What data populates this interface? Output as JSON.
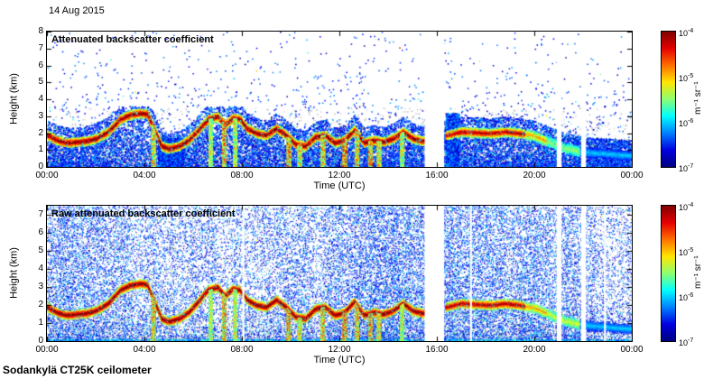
{
  "header": {
    "date": "14 Aug 2015"
  },
  "footer": {
    "instrument": "Sodankylä CT25K ceilometer"
  },
  "colorbar": {
    "unit": "m⁻¹ sr⁻¹",
    "tick_base": "10",
    "tick_exponents": [
      "-4",
      "-5",
      "-6",
      "-7"
    ],
    "colors_top_to_bottom": [
      "#7f0000",
      "#e50000",
      "#ff7000",
      "#ffe600",
      "#8cff70",
      "#00ffff",
      "#0080ff",
      "#0000e0",
      "#000080"
    ]
  },
  "chart_data": {
    "type": "heatmap",
    "colormap": "jet",
    "color_scale": {
      "type": "log",
      "min": 1e-07,
      "max": 0.0001,
      "unit": "m⁻¹ sr⁻¹"
    },
    "x_axis": {
      "label": "Time (UTC)",
      "range_hours": [
        0,
        24
      ],
      "ticks": [
        "00:00",
        "04:00",
        "08:00",
        "12:00",
        "16:00",
        "20:00",
        "00:00"
      ]
    },
    "panels": [
      {
        "id": "attenuated",
        "title": "Attenuated backscatter coefficient",
        "ylabel": "Height (km)",
        "y_ticks": [
          0,
          1,
          2,
          3,
          4,
          5,
          6,
          7,
          8
        ],
        "y_max_km": 8,
        "noise": "processed",
        "aerosol_layer_km": [
          [
            0,
            1.9
          ],
          [
            0.4,
            1.6
          ],
          [
            0.8,
            1.45
          ],
          [
            1.2,
            1.5
          ],
          [
            1.6,
            1.55
          ],
          [
            2,
            1.7
          ],
          [
            2.5,
            2.1
          ],
          [
            3,
            2.85
          ],
          [
            3.4,
            3.1
          ],
          [
            3.8,
            3.2
          ],
          [
            4.1,
            3.15
          ],
          [
            4.4,
            2.2
          ],
          [
            4.7,
            1.25
          ],
          [
            5,
            1.1
          ],
          [
            5.4,
            1.25
          ],
          [
            5.8,
            1.6
          ],
          [
            6.2,
            2.2
          ],
          [
            6.6,
            2.85
          ],
          [
            7,
            3.0
          ],
          [
            7.3,
            2.5
          ],
          [
            7.6,
            2.9
          ],
          [
            7.9,
            2.85
          ],
          [
            8.2,
            2.3
          ],
          [
            8.6,
            2.0
          ],
          [
            9,
            1.9
          ],
          [
            9.4,
            2.3
          ],
          [
            9.8,
            1.9
          ],
          [
            10.2,
            1.35
          ],
          [
            10.6,
            1.25
          ],
          [
            11,
            1.8
          ],
          [
            11.4,
            1.9
          ],
          [
            11.8,
            1.45
          ],
          [
            12.2,
            1.6
          ],
          [
            12.6,
            2.2
          ],
          [
            13,
            1.45
          ],
          [
            13.4,
            1.6
          ],
          [
            13.8,
            1.5
          ],
          [
            14.2,
            1.7
          ],
          [
            14.6,
            2.1
          ],
          [
            15,
            1.7
          ],
          [
            15.4,
            1.55
          ],
          [
            16.4,
            1.9
          ],
          [
            17,
            2.1
          ],
          [
            17.6,
            2.05
          ],
          [
            18.2,
            2.0
          ],
          [
            18.8,
            2.1
          ],
          [
            19.4,
            2.0
          ],
          [
            20,
            1.85
          ],
          [
            20.6,
            1.5
          ],
          [
            21.2,
            1.15
          ],
          [
            21.8,
            0.95
          ],
          [
            22.4,
            0.85
          ],
          [
            23,
            0.8
          ],
          [
            23.6,
            0.72
          ],
          [
            24,
            0.7
          ]
        ],
        "layer_segments": [
          {
            "from": 0,
            "to": 15.5,
            "strength": 1
          },
          {
            "from": 16.35,
            "to": 19.6,
            "strength": 0.9
          },
          {
            "from": 19.6,
            "to": 20.5,
            "strength": 0.55
          },
          {
            "from": 20.5,
            "to": 21.85,
            "strength": 0.25
          },
          {
            "from": 21.85,
            "to": 24,
            "strength": 0.8,
            "dark": true
          }
        ],
        "precip_hours": [
          [
            4.35,
            0.75
          ],
          [
            6.7,
            0.55
          ],
          [
            7.25,
            0.85
          ],
          [
            7.7,
            0.6
          ],
          [
            9.9,
            0.9
          ],
          [
            10.35,
            0.7
          ],
          [
            11.3,
            0.8
          ],
          [
            12.2,
            0.95
          ],
          [
            12.7,
            0.8
          ],
          [
            13.25,
            0.9
          ],
          [
            13.6,
            0.7
          ],
          [
            14.55,
            0.6
          ]
        ],
        "gap_hours": [
          [
            15.5,
            16.3
          ],
          [
            20.92,
            21.12
          ],
          [
            21.92,
            22.12
          ]
        ],
        "dense_columns": [
          [
            4.55,
            5.6,
            1.7
          ],
          [
            16.35,
            16.9,
            3.2
          ]
        ]
      },
      {
        "id": "raw",
        "title": "Raw attenuated backscatter coefficient",
        "ylabel": "Height (km)",
        "y_ticks": [
          0,
          1,
          2,
          3,
          4,
          5,
          6,
          7
        ],
        "y_max_km": 7.5,
        "noise": "raw",
        "aerosol_layer_km": [
          [
            0,
            1.9
          ],
          [
            0.4,
            1.6
          ],
          [
            0.8,
            1.45
          ],
          [
            1.2,
            1.5
          ],
          [
            1.6,
            1.55
          ],
          [
            2,
            1.7
          ],
          [
            2.5,
            2.1
          ],
          [
            3,
            2.85
          ],
          [
            3.4,
            3.1
          ],
          [
            3.8,
            3.2
          ],
          [
            4.1,
            3.15
          ],
          [
            4.4,
            2.2
          ],
          [
            4.7,
            1.25
          ],
          [
            5,
            1.1
          ],
          [
            5.4,
            1.25
          ],
          [
            5.8,
            1.6
          ],
          [
            6.2,
            2.2
          ],
          [
            6.6,
            2.85
          ],
          [
            7,
            3.0
          ],
          [
            7.3,
            2.5
          ],
          [
            7.6,
            2.9
          ],
          [
            7.9,
            2.85
          ],
          [
            8.2,
            2.3
          ],
          [
            8.6,
            2.0
          ],
          [
            9,
            1.9
          ],
          [
            9.4,
            2.3
          ],
          [
            9.8,
            1.9
          ],
          [
            10.2,
            1.35
          ],
          [
            10.6,
            1.25
          ],
          [
            11,
            1.8
          ],
          [
            11.4,
            1.9
          ],
          [
            11.8,
            1.45
          ],
          [
            12.2,
            1.6
          ],
          [
            12.6,
            2.2
          ],
          [
            13,
            1.45
          ],
          [
            13.4,
            1.6
          ],
          [
            13.8,
            1.5
          ],
          [
            14.2,
            1.7
          ],
          [
            14.6,
            2.1
          ],
          [
            15,
            1.7
          ],
          [
            15.4,
            1.55
          ],
          [
            16.4,
            1.9
          ],
          [
            17,
            2.1
          ],
          [
            17.6,
            2.05
          ],
          [
            18.2,
            2.0
          ],
          [
            18.8,
            2.1
          ],
          [
            19.4,
            2.0
          ],
          [
            20,
            1.85
          ],
          [
            20.6,
            1.5
          ],
          [
            21.2,
            1.15
          ],
          [
            21.8,
            0.95
          ],
          [
            22.4,
            0.85
          ],
          [
            23,
            0.8
          ],
          [
            23.6,
            0.72
          ],
          [
            24,
            0.7
          ]
        ],
        "layer_segments": [
          {
            "from": 0,
            "to": 15.5,
            "strength": 1
          },
          {
            "from": 16.35,
            "to": 19.6,
            "strength": 0.9
          },
          {
            "from": 19.6,
            "to": 20.5,
            "strength": 0.55
          },
          {
            "from": 20.5,
            "to": 21.85,
            "strength": 0.35
          },
          {
            "from": 21.85,
            "to": 24,
            "strength": 0.8,
            "dark": true
          }
        ],
        "precip_hours": [
          [
            4.35,
            0.75
          ],
          [
            6.7,
            0.55
          ],
          [
            7.25,
            0.85
          ],
          [
            7.7,
            0.6
          ],
          [
            9.9,
            0.9
          ],
          [
            10.35,
            0.7
          ],
          [
            11.3,
            0.8
          ],
          [
            12.2,
            0.95
          ],
          [
            12.7,
            0.8
          ],
          [
            13.25,
            0.9
          ],
          [
            13.6,
            0.7
          ],
          [
            14.55,
            0.6
          ]
        ],
        "gap_hours": [
          [
            8.02,
            8.1
          ],
          [
            15.5,
            16.3
          ],
          [
            17.36,
            17.44
          ],
          [
            20.92,
            21.12
          ],
          [
            21.92,
            22.12
          ],
          [
            22.86,
            22.94
          ]
        ],
        "dense_columns": []
      }
    ]
  }
}
